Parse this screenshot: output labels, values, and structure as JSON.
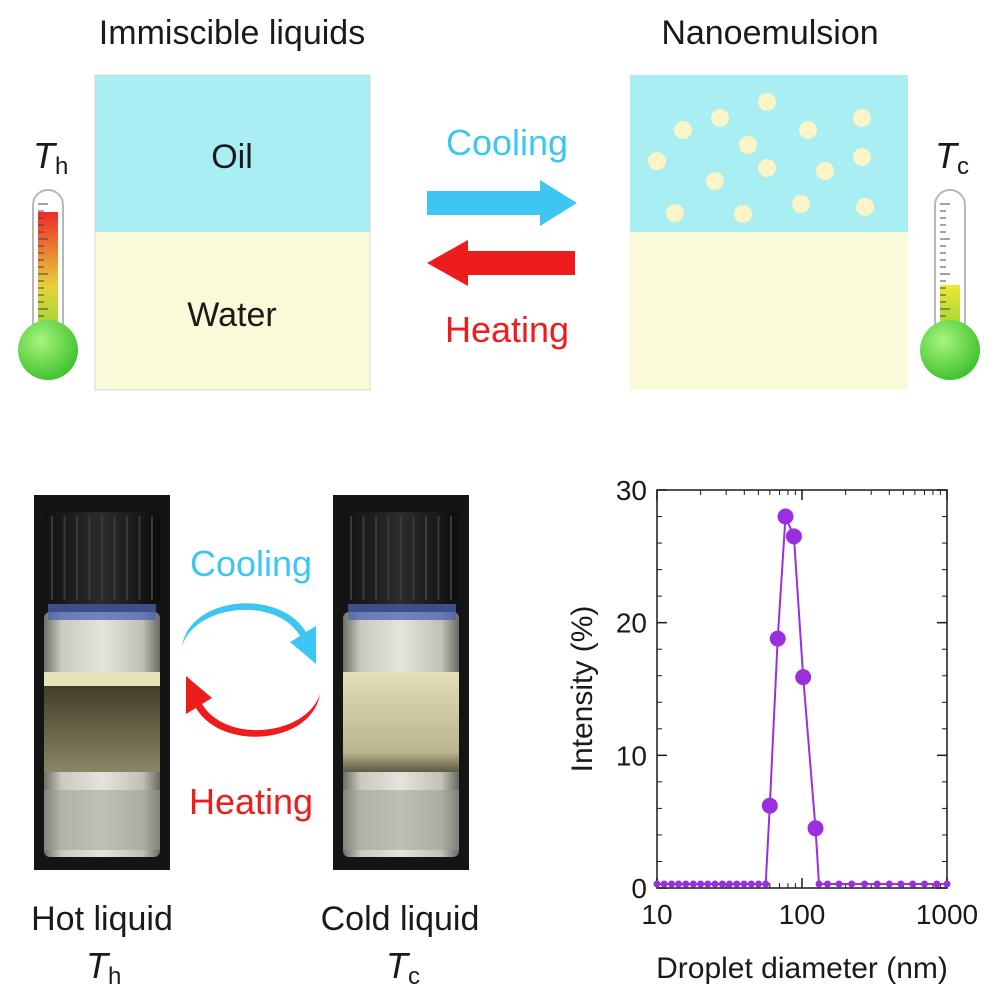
{
  "top": {
    "left_title": "Immiscible liquids",
    "right_title": "Nanoemulsion",
    "oil_label": "Oil",
    "water_label": "Water",
    "cooling_label": "Cooling",
    "heating_label": "Heating",
    "hot_symbol": "T",
    "hot_subscript": "h",
    "cold_symbol": "T",
    "cold_subscript": "c"
  },
  "bottom": {
    "cooling_label": "Cooling",
    "heating_label": "Heating",
    "hot_caption": "Hot liquid",
    "cold_caption": "Cold liquid",
    "hot_symbol": "T",
    "hot_subscript": "h",
    "cold_symbol": "T",
    "cold_subscript": "c"
  },
  "colors": {
    "oil": "#a8eef2",
    "water": "#fafad8",
    "droplet": "#fbf4c8",
    "cooling": "#3ec6f2",
    "heating": "#ee1c1c",
    "series": "#9a2fe0",
    "bulb": "#5cd83a"
  },
  "chart_data": {
    "type": "scatter",
    "xscale": "log",
    "xlim": [
      10,
      1000
    ],
    "ylim": [
      0,
      30
    ],
    "xticks": [
      10,
      100,
      1000
    ],
    "xtick_labels": [
      "10",
      "100",
      "1000"
    ],
    "yticks": [
      0,
      10,
      20,
      30
    ],
    "ytick_labels": [
      "0",
      "10",
      "20",
      "30"
    ],
    "xlabel": "Droplet diameter (nm)",
    "ylabel": "Intensity (%)",
    "grid": false,
    "series": [
      {
        "x": [
          10,
          11.2,
          12.6,
          14.1,
          15.8,
          17.8,
          20,
          22.4,
          25.1,
          28.2,
          31.6,
          35.5,
          39.8,
          44.7,
          50.1,
          56.2,
          60,
          68,
          77,
          88,
          102,
          124,
          131,
          150,
          180,
          220,
          270,
          330,
          400,
          480,
          580,
          700,
          850,
          1000
        ],
        "y": [
          0.3,
          0.3,
          0.3,
          0.3,
          0.3,
          0.3,
          0.3,
          0.3,
          0.3,
          0.3,
          0.3,
          0.3,
          0.3,
          0.3,
          0.3,
          0.3,
          6.2,
          18.8,
          28.0,
          26.5,
          15.9,
          4.5,
          0.3,
          0.3,
          0.3,
          0.3,
          0.3,
          0.3,
          0.3,
          0.3,
          0.3,
          0.3,
          0.3,
          0.3
        ]
      }
    ]
  }
}
